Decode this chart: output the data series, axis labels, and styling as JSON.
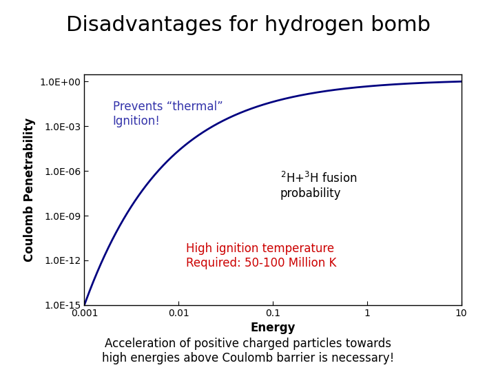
{
  "title": "Disadvantages for hydrogen bomb",
  "xlabel": "Energy",
  "ylabel": "Coulomb Penetrability",
  "x_ticks": [
    0.001,
    0.01,
    0.1,
    1,
    10
  ],
  "y_ticks": [
    1e-15,
    1e-12,
    1e-09,
    1e-06,
    0.001,
    1.0
  ],
  "y_tick_labels": [
    "1.0E-15",
    "1.0E-12",
    "1.0E-09",
    "1.0E-06",
    "1.0E-03",
    "1.0E+00"
  ],
  "x_tick_labels": [
    "0.001",
    "0.01",
    "0.1",
    "1",
    "10"
  ],
  "curve_color": "#000080",
  "annotation1_text": "Prevents “thermal”\nIgnition!",
  "annotation1_color": "#3333aa",
  "annotation2_text": "$^{2}$H+$^{3}$H fusion\nprobability",
  "annotation2_color": "#000000",
  "annotation3_text": "High ignition temperature\nRequired: 50-100 Million K",
  "annotation3_color": "#cc0000",
  "footer_text": "Acceleration of positive charged particles towards\nhigh energies above Coulomb barrier is necessary!",
  "footer_color": "#000000",
  "background_color": "#ffffff",
  "title_fontsize": 22,
  "axis_label_fontsize": 12,
  "tick_fontsize": 10,
  "annotation_fontsize": 12,
  "footer_fontsize": 12,
  "ylabel_fontsize": 12
}
